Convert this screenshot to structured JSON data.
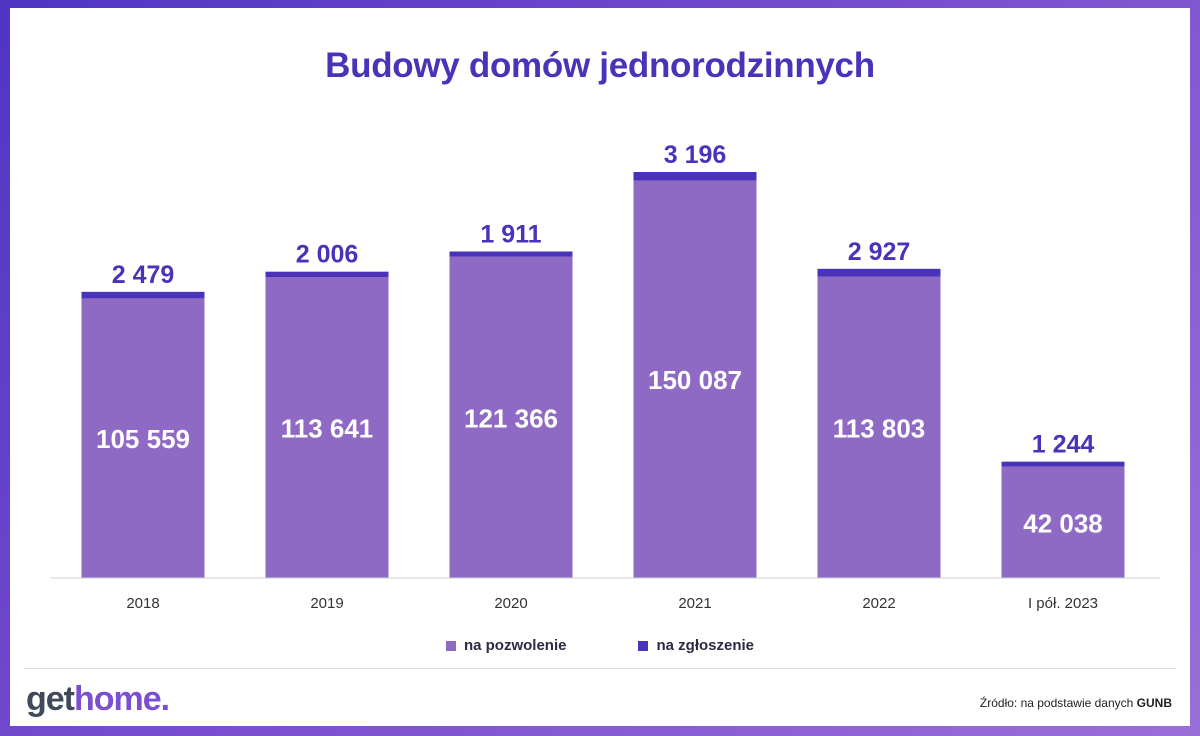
{
  "chart_data": {
    "type": "bar",
    "stacked": true,
    "title": "Budowy domów jednorodzinnych",
    "categories": [
      "2018",
      "2019",
      "2020",
      "2021",
      "2022",
      "I pół. 2023"
    ],
    "series": [
      {
        "name": "na pozwolenie",
        "color": "#8e6ac4",
        "values": [
          105559,
          113641,
          121366,
          150087,
          113803,
          42038
        ],
        "labels": [
          "105 559",
          "113 641",
          "121 366",
          "150 087",
          "113 803",
          "42 038"
        ]
      },
      {
        "name": "na zgłoszenie",
        "color": "#4a33b8",
        "values": [
          2479,
          2006,
          1911,
          3196,
          2927,
          1244
        ],
        "labels": [
          "2 479",
          "2 006",
          "1 911",
          "3 196",
          "2 927",
          "1 244"
        ]
      }
    ],
    "ylim": [
      0,
      153283
    ],
    "grid": false,
    "legend_position": "bottom"
  },
  "legend": [
    {
      "label": "na pozwolenie",
      "color": "#8e6ac4"
    },
    {
      "label": "na zgłoszenie",
      "color": "#4a33b8"
    }
  ],
  "brand": {
    "logo_get": "get",
    "logo_home": "home."
  },
  "source": {
    "prefix": "Źródło: na podstawie danych ",
    "name": "GUNB"
  }
}
